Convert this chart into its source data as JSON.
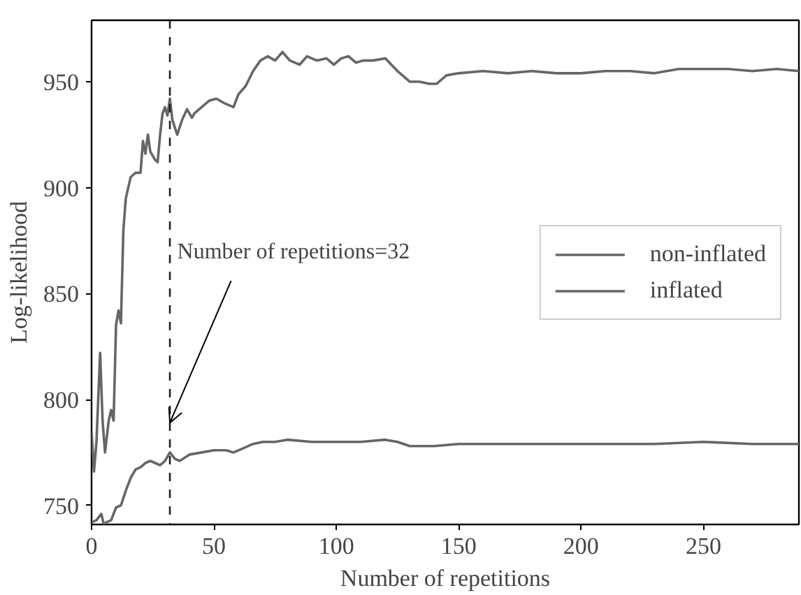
{
  "chart_data": {
    "type": "line",
    "xlabel": "Number of repetitions",
    "ylabel": "Log-likelihood",
    "xlim": [
      0,
      289
    ],
    "ylim": [
      741,
      979
    ],
    "xticks": [
      0,
      50,
      100,
      150,
      200,
      250
    ],
    "yticks": [
      750,
      800,
      850,
      900,
      950
    ],
    "grid": false,
    "legend": "right",
    "marker": "none",
    "line_style": "solid",
    "ref_lines": [
      {
        "axis": "x",
        "value": 32,
        "label": null,
        "line_style": "dashed",
        "color": "#222222"
      }
    ],
    "annotations": [
      {
        "text": "Number of repetitions=32",
        "x": 32,
        "y": 789
      }
    ],
    "series": [
      {
        "name": "non-inflated",
        "color": "#666666",
        "x": [
          0,
          1,
          2,
          3.5,
          4.5,
          5.5,
          7,
          8,
          9,
          10,
          11,
          12,
          13,
          14,
          15,
          16,
          18,
          20,
          21,
          22,
          23,
          24,
          25,
          26,
          27,
          28,
          29,
          30,
          31,
          32,
          33,
          35,
          37,
          39,
          41,
          42,
          45,
          48,
          51,
          54,
          58,
          60,
          63,
          66,
          69,
          72,
          75,
          78,
          81,
          85,
          88,
          92,
          96,
          99,
          102,
          105,
          108,
          111,
          115,
          120,
          125,
          130,
          134,
          138,
          141,
          145,
          150,
          160,
          170,
          180,
          190,
          200,
          210,
          220,
          230,
          240,
          250,
          260,
          270,
          280,
          289
        ],
        "values": [
          785,
          766,
          780,
          822,
          790,
          775,
          790,
          795,
          790,
          835,
          842,
          836,
          880,
          895,
          900,
          905,
          907,
          907,
          922,
          916,
          925,
          917,
          915,
          913,
          912,
          925,
          935,
          938,
          934,
          942,
          932,
          925,
          932,
          937,
          933,
          935,
          938,
          941,
          942,
          940,
          938,
          944,
          948,
          955,
          960,
          962,
          960,
          964,
          960,
          958,
          962,
          960,
          961,
          958,
          961,
          962,
          959,
          960,
          960,
          961,
          955,
          950,
          950,
          949,
          949,
          953,
          954,
          955,
          954,
          955,
          954,
          954,
          955,
          955,
          954,
          956,
          956,
          956,
          955,
          956,
          955
        ]
      },
      {
        "name": "inflated",
        "color": "#666666",
        "x": [
          0,
          2,
          4,
          5,
          6,
          8,
          10,
          12,
          14,
          16,
          18,
          20,
          22,
          24,
          26,
          28,
          30,
          32,
          34,
          36,
          40,
          45,
          50,
          55,
          58,
          62,
          66,
          70,
          75,
          80,
          90,
          100,
          110,
          120,
          125,
          130,
          135,
          140,
          150,
          170,
          190,
          210,
          230,
          250,
          270,
          289
        ],
        "values": [
          742,
          743,
          746,
          741,
          742,
          743,
          749,
          750,
          757,
          763,
          767,
          768,
          770,
          771,
          770,
          769,
          771,
          775,
          772,
          771,
          774,
          775,
          776,
          776,
          775,
          777,
          779,
          780,
          780,
          781,
          780,
          780,
          780,
          781,
          780,
          778,
          778,
          778,
          779,
          779,
          779,
          779,
          779,
          780,
          779,
          779
        ]
      }
    ]
  }
}
